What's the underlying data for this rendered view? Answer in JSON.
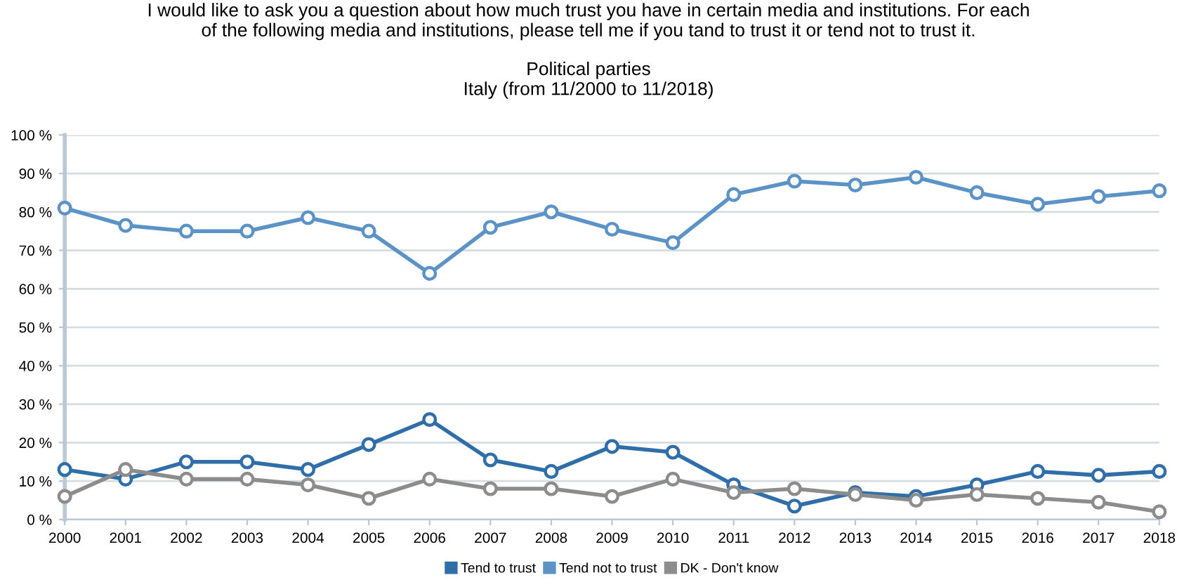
{
  "chart_data": {
    "type": "line",
    "title": "I would like to ask you a question about how much trust you have in certain media and institutions. For each\nof the following media and institutions, please tell me if you tand to trust it or tend not to trust it.",
    "subtitle": "Political parties\nItaly (from 11/2000 to 11/2018)",
    "x": [
      2000,
      2001,
      2002,
      2003,
      2004,
      2005,
      2006,
      2007,
      2008,
      2009,
      2010,
      2011,
      2012,
      2013,
      2014,
      2015,
      2016,
      2017,
      2018
    ],
    "series": [
      {
        "name": "Tend to trust",
        "color": "#2f6ea8",
        "values": [
          13,
          10.5,
          15,
          15,
          13,
          19.5,
          26,
          15.5,
          12.5,
          19,
          17.5,
          9,
          3.5,
          7,
          6,
          9,
          12.5,
          11.5,
          12.5
        ]
      },
      {
        "name": "Tend not to trust",
        "color": "#5b93c7",
        "values": [
          81,
          76.5,
          75,
          75,
          78.5,
          75,
          64,
          76,
          80,
          75.5,
          72,
          84.5,
          88,
          87,
          89,
          85,
          82,
          84,
          85.5
        ]
      },
      {
        "name": "DK - Don't know",
        "color": "#8c8c8c",
        "values": [
          6,
          13,
          10.5,
          10.5,
          9,
          5.5,
          10.5,
          8,
          8,
          6,
          10.5,
          7,
          8,
          6.5,
          5,
          6.5,
          5.5,
          4.5,
          2
        ]
      }
    ],
    "xlim": [
      2000,
      2018
    ],
    "xticks": [
      2000,
      2001,
      2002,
      2003,
      2004,
      2005,
      2006,
      2007,
      2008,
      2009,
      2010,
      2011,
      2012,
      2013,
      2014,
      2015,
      2016,
      2017,
      2018
    ],
    "ylim": [
      0,
      100
    ],
    "yticks": [
      {
        "value": 0,
        "label": "0 %"
      },
      {
        "value": 10,
        "label": "10 %"
      },
      {
        "value": 20,
        "label": "20 %"
      },
      {
        "value": 30,
        "label": "30 %"
      },
      {
        "value": 40,
        "label": "40 %"
      },
      {
        "value": 50,
        "label": "50 %"
      },
      {
        "value": 60,
        "label": "60 %"
      },
      {
        "value": 70,
        "label": "70 %"
      },
      {
        "value": 80,
        "label": "80 %"
      },
      {
        "value": 90,
        "label": "90 %"
      },
      {
        "value": 100,
        "label": "100 %"
      }
    ],
    "grid": "y",
    "legend": "bottom",
    "marker": "circle",
    "line_style": "solid"
  }
}
